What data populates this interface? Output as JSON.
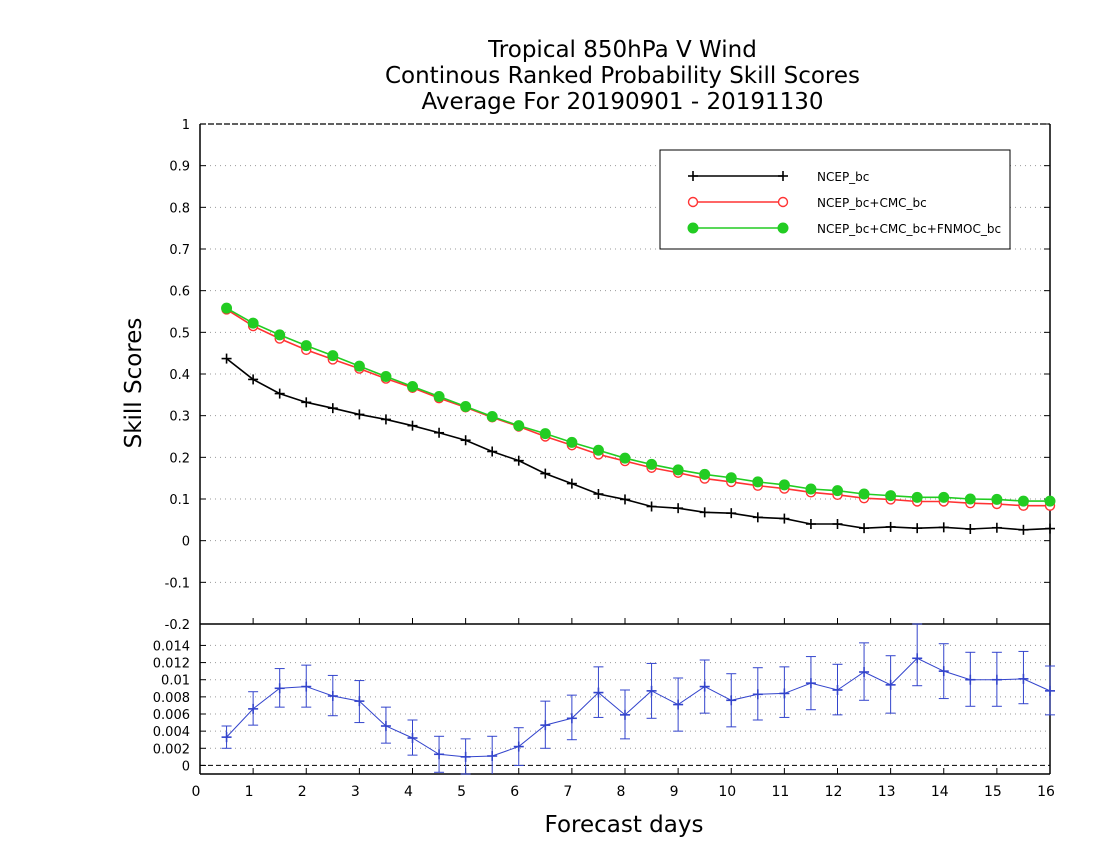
{
  "chart_data": [
    {
      "type": "line",
      "title": [
        "Tropical 850hPa V Wind",
        "Continous Ranked Probability Skill Scores",
        "Average For 20190901 - 20191130"
      ],
      "xlabel": "Forecast days",
      "ylabel": "Skill Scores",
      "xlim": [
        0,
        16
      ],
      "ylim": [
        -0.2,
        1
      ],
      "xticks": [
        "0",
        "1",
        "2",
        "3",
        "4",
        "5",
        "6",
        "7",
        "8",
        "9",
        "10",
        "11",
        "12",
        "13",
        "14",
        "15",
        "16"
      ],
      "yticks": [
        "-0.2",
        "-0.1",
        "0",
        "0.1",
        "0.2",
        "0.3",
        "0.4",
        "0.5",
        "0.6",
        "0.7",
        "0.8",
        "0.9",
        "1"
      ],
      "grid": true,
      "legend_position": "top-right",
      "x": [
        0.5,
        1,
        1.5,
        2,
        2.5,
        3,
        3.5,
        4,
        4.5,
        5,
        5.5,
        6,
        6.5,
        7,
        7.5,
        8,
        8.5,
        9,
        9.5,
        10,
        10.5,
        11,
        11.5,
        12,
        12.5,
        13,
        13.5,
        14,
        14.5,
        15,
        15.5,
        16
      ],
      "series": [
        {
          "name": "NCEP_bc",
          "color": "#000000",
          "marker": "plus",
          "values": [
            0.437,
            0.387,
            0.353,
            0.332,
            0.318,
            0.303,
            0.291,
            0.276,
            0.259,
            0.241,
            0.214,
            0.192,
            0.161,
            0.137,
            0.112,
            0.099,
            0.082,
            0.078,
            0.068,
            0.066,
            0.056,
            0.053,
            0.04,
            0.04,
            0.03,
            0.033,
            0.03,
            0.032,
            0.028,
            0.031,
            0.026,
            0.029
          ]
        },
        {
          "name": "NCEP_bc+CMC_bc",
          "color": "#ff3333",
          "marker": "open-circle",
          "values": [
            0.555,
            0.515,
            0.485,
            0.458,
            0.435,
            0.413,
            0.389,
            0.367,
            0.342,
            0.32,
            0.296,
            0.274,
            0.25,
            0.229,
            0.207,
            0.191,
            0.175,
            0.163,
            0.149,
            0.141,
            0.132,
            0.125,
            0.116,
            0.11,
            0.102,
            0.099,
            0.094,
            0.094,
            0.09,
            0.088,
            0.084,
            0.084
          ]
        },
        {
          "name": "NCEP_bc+CMC_bc+FNMOC_bc",
          "color": "#22cc22",
          "marker": "filled-circle",
          "values": [
            0.558,
            0.522,
            0.494,
            0.468,
            0.444,
            0.419,
            0.394,
            0.37,
            0.346,
            0.322,
            0.298,
            0.276,
            0.257,
            0.236,
            0.217,
            0.198,
            0.183,
            0.17,
            0.159,
            0.151,
            0.141,
            0.134,
            0.124,
            0.12,
            0.112,
            0.108,
            0.104,
            0.104,
            0.1,
            0.099,
            0.095,
            0.095
          ]
        }
      ]
    },
    {
      "type": "line",
      "xlim": [
        0,
        16
      ],
      "ylim": [
        -0.001,
        0.0165
      ],
      "yticks": [
        "0",
        "0.002",
        "0.004",
        "0.006",
        "0.008",
        "0.01",
        "0.012",
        "0.014"
      ],
      "grid": true,
      "x": [
        0.5,
        1,
        1.5,
        2,
        2.5,
        3,
        3.5,
        4,
        4.5,
        5,
        5.5,
        6,
        6.5,
        7,
        7.5,
        8,
        8.5,
        9,
        9.5,
        10,
        10.5,
        11,
        11.5,
        12,
        12.5,
        13,
        13.5,
        14,
        14.5,
        15,
        15.5,
        16
      ],
      "series": [
        {
          "color": "#3344cc",
          "marker": "plus",
          "error_bars": true,
          "values": [
            0.0033,
            0.0066,
            0.009,
            0.0092,
            0.0081,
            0.0075,
            0.0046,
            0.0032,
            0.0013,
            0.001,
            0.0011,
            0.0022,
            0.0047,
            0.0055,
            0.0085,
            0.0059,
            0.0087,
            0.0071,
            0.0092,
            0.0076,
            0.0083,
            0.0084,
            0.0096,
            0.0088,
            0.0109,
            0.0094,
            0.0125,
            0.011,
            0.01,
            0.01,
            0.0101,
            0.0087
          ],
          "err_low": [
            0.002,
            0.0047,
            0.0068,
            0.0068,
            0.0058,
            0.005,
            0.0026,
            0.0012,
            -0.0008,
            -0.001,
            -0.0011,
            0.0,
            0.002,
            0.003,
            0.0056,
            0.0031,
            0.0055,
            0.004,
            0.0061,
            0.0045,
            0.0053,
            0.0056,
            0.0065,
            0.0059,
            0.0076,
            0.0061,
            0.0093,
            0.0078,
            0.0069,
            0.0069,
            0.0072,
            0.0059
          ],
          "err_high": [
            0.0046,
            0.0086,
            0.0113,
            0.0117,
            0.0105,
            0.0099,
            0.0068,
            0.0053,
            0.0034,
            0.0031,
            0.0034,
            0.0044,
            0.0075,
            0.0082,
            0.0115,
            0.0088,
            0.0119,
            0.0102,
            0.0123,
            0.0107,
            0.0114,
            0.0115,
            0.0127,
            0.0118,
            0.0143,
            0.0128,
            0.0165,
            0.0142,
            0.0132,
            0.0132,
            0.0133,
            0.0116
          ]
        }
      ]
    }
  ]
}
